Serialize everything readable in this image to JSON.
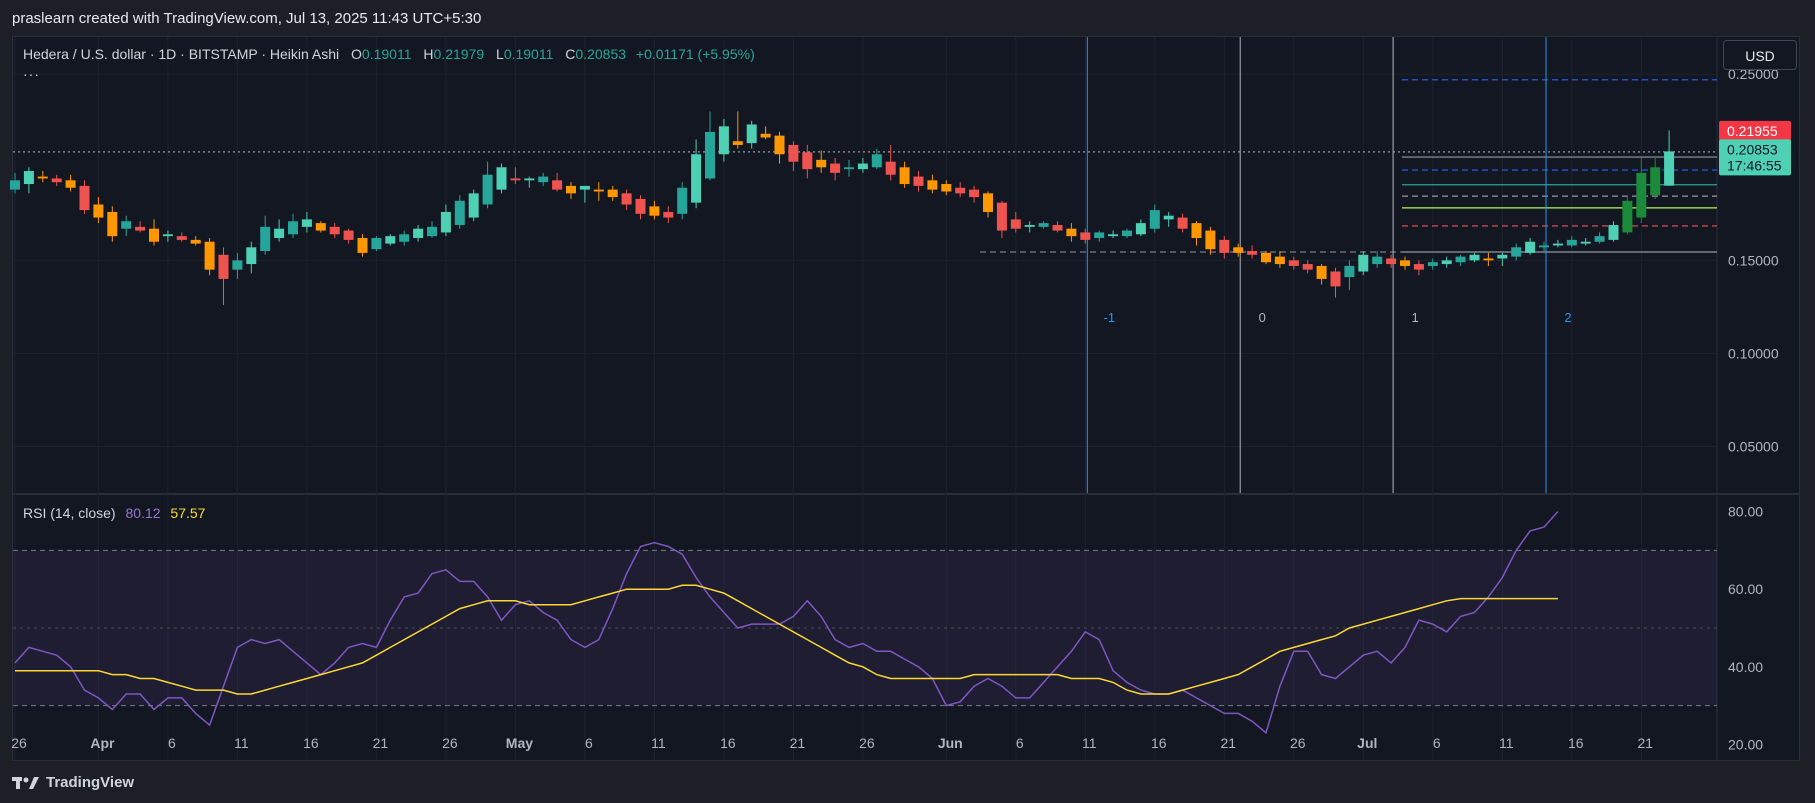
{
  "header": {
    "created_by": "praslearn created with TradingView.com, Jul 13, 2025 11:43 UTC+5:30"
  },
  "legend": {
    "symbol": "Hedera / U.S. dollar · 1D · BITSTAMP · Heikin Ashi",
    "o_label": "O",
    "o_value": "0.19011",
    "h_label": "H",
    "h_value": "0.21979",
    "l_label": "L",
    "l_value": "0.19011",
    "c_label": "C",
    "c_value": "0.20853",
    "change": "+0.01171 (+5.95%)",
    "more": "···"
  },
  "currency_button": "USD",
  "rsi_legend": {
    "name": "RSI (14, close)",
    "rsi_value": "80.12",
    "ma_value": "57.57"
  },
  "footer": {
    "brand": "TradingView"
  },
  "colors": {
    "up": "#26a69a",
    "up_heikin": "#4dd0b4",
    "down": "#ef5350",
    "down_orange": "#ff9800",
    "rsi_line": "#7e57c2",
    "rsi_ma": "#fdd835",
    "grid": "#1e222d"
  },
  "chart_data": {
    "type": "candlestick",
    "title": "Hedera / U.S. dollar · 1D · BITSTAMP · Heikin Ashi",
    "price_axis": {
      "ticks": [
        "0.25000",
        "0.15000",
        "0.10000",
        "0.05000"
      ],
      "ylim": [
        0.025,
        0.27
      ]
    },
    "price_tags": [
      {
        "label": "0.21955",
        "price": 0.21955,
        "color": "#f23645"
      },
      {
        "label": "0.20853",
        "label2": "17:46:55",
        "price": 0.20853,
        "color": "#4dd0b4"
      }
    ],
    "x_ticks": [
      "26",
      "Apr",
      "6",
      "11",
      "16",
      "21",
      "26",
      "May",
      "6",
      "11",
      "16",
      "21",
      "26",
      "Jun",
      "6",
      "11",
      "16",
      "21",
      "26",
      "Jul",
      "6",
      "11",
      "16",
      "21"
    ],
    "x_tick_index": [
      0,
      6,
      11,
      16,
      21,
      26,
      31,
      36,
      41,
      46,
      51,
      56,
      61,
      67,
      72,
      77,
      82,
      87,
      92,
      97,
      102,
      107,
      112,
      117
    ],
    "candles": [
      {
        "o": 0.188,
        "h": 0.197,
        "l": 0.186,
        "c": 0.193
      },
      {
        "o": 0.191,
        "h": 0.2,
        "l": 0.186,
        "c": 0.198
      },
      {
        "o": 0.195,
        "h": 0.198,
        "l": 0.192,
        "c": 0.194
      },
      {
        "o": 0.194,
        "h": 0.196,
        "l": 0.19,
        "c": 0.192
      },
      {
        "o": 0.193,
        "h": 0.196,
        "l": 0.187,
        "c": 0.189
      },
      {
        "o": 0.19,
        "h": 0.193,
        "l": 0.175,
        "c": 0.177
      },
      {
        "o": 0.18,
        "h": 0.184,
        "l": 0.17,
        "c": 0.173
      },
      {
        "o": 0.176,
        "h": 0.179,
        "l": 0.16,
        "c": 0.163
      },
      {
        "o": 0.167,
        "h": 0.174,
        "l": 0.163,
        "c": 0.171
      },
      {
        "o": 0.168,
        "h": 0.171,
        "l": 0.165,
        "c": 0.166
      },
      {
        "o": 0.167,
        "h": 0.172,
        "l": 0.158,
        "c": 0.16
      },
      {
        "o": 0.163,
        "h": 0.166,
        "l": 0.16,
        "c": 0.164
      },
      {
        "o": 0.163,
        "h": 0.165,
        "l": 0.16,
        "c": 0.161
      },
      {
        "o": 0.161,
        "h": 0.163,
        "l": 0.158,
        "c": 0.159
      },
      {
        "o": 0.16,
        "h": 0.162,
        "l": 0.142,
        "c": 0.145
      },
      {
        "o": 0.153,
        "h": 0.157,
        "l": 0.126,
        "c": 0.14
      },
      {
        "o": 0.145,
        "h": 0.154,
        "l": 0.14,
        "c": 0.15
      },
      {
        "o": 0.148,
        "h": 0.16,
        "l": 0.143,
        "c": 0.157
      },
      {
        "o": 0.155,
        "h": 0.174,
        "l": 0.153,
        "c": 0.168
      },
      {
        "o": 0.162,
        "h": 0.172,
        "l": 0.16,
        "c": 0.167
      },
      {
        "o": 0.164,
        "h": 0.175,
        "l": 0.162,
        "c": 0.171
      },
      {
        "o": 0.168,
        "h": 0.176,
        "l": 0.165,
        "c": 0.172
      },
      {
        "o": 0.17,
        "h": 0.171,
        "l": 0.165,
        "c": 0.166
      },
      {
        "o": 0.168,
        "h": 0.17,
        "l": 0.162,
        "c": 0.164
      },
      {
        "o": 0.166,
        "h": 0.167,
        "l": 0.159,
        "c": 0.161
      },
      {
        "o": 0.162,
        "h": 0.164,
        "l": 0.152,
        "c": 0.154
      },
      {
        "o": 0.156,
        "h": 0.163,
        "l": 0.155,
        "c": 0.162
      },
      {
        "o": 0.159,
        "h": 0.164,
        "l": 0.158,
        "c": 0.163
      },
      {
        "o": 0.16,
        "h": 0.166,
        "l": 0.158,
        "c": 0.164
      },
      {
        "o": 0.162,
        "h": 0.169,
        "l": 0.16,
        "c": 0.167
      },
      {
        "o": 0.163,
        "h": 0.171,
        "l": 0.162,
        "c": 0.168
      },
      {
        "o": 0.165,
        "h": 0.18,
        "l": 0.163,
        "c": 0.176
      },
      {
        "o": 0.169,
        "h": 0.185,
        "l": 0.167,
        "c": 0.182
      },
      {
        "o": 0.173,
        "h": 0.188,
        "l": 0.171,
        "c": 0.186
      },
      {
        "o": 0.18,
        "h": 0.203,
        "l": 0.178,
        "c": 0.196
      },
      {
        "o": 0.188,
        "h": 0.202,
        "l": 0.186,
        "c": 0.2
      },
      {
        "o": 0.194,
        "h": 0.2,
        "l": 0.191,
        "c": 0.193
      },
      {
        "o": 0.193,
        "h": 0.195,
        "l": 0.189,
        "c": 0.194
      },
      {
        "o": 0.192,
        "h": 0.197,
        "l": 0.19,
        "c": 0.195
      },
      {
        "o": 0.193,
        "h": 0.197,
        "l": 0.187,
        "c": 0.188
      },
      {
        "o": 0.19,
        "h": 0.192,
        "l": 0.183,
        "c": 0.186
      },
      {
        "o": 0.188,
        "h": 0.19,
        "l": 0.181,
        "c": 0.19
      },
      {
        "o": 0.188,
        "h": 0.192,
        "l": 0.182,
        "c": 0.187
      },
      {
        "o": 0.188,
        "h": 0.19,
        "l": 0.182,
        "c": 0.184
      },
      {
        "o": 0.186,
        "h": 0.188,
        "l": 0.177,
        "c": 0.18
      },
      {
        "o": 0.183,
        "h": 0.185,
        "l": 0.172,
        "c": 0.175
      },
      {
        "o": 0.179,
        "h": 0.182,
        "l": 0.172,
        "c": 0.174
      },
      {
        "o": 0.176,
        "h": 0.179,
        "l": 0.17,
        "c": 0.173
      },
      {
        "o": 0.175,
        "h": 0.192,
        "l": 0.172,
        "c": 0.189
      },
      {
        "o": 0.181,
        "h": 0.215,
        "l": 0.178,
        "c": 0.207
      },
      {
        "o": 0.194,
        "h": 0.23,
        "l": 0.193,
        "c": 0.219
      },
      {
        "o": 0.207,
        "h": 0.226,
        "l": 0.203,
        "c": 0.222
      },
      {
        "o": 0.214,
        "h": 0.23,
        "l": 0.21,
        "c": 0.212
      },
      {
        "o": 0.213,
        "h": 0.225,
        "l": 0.21,
        "c": 0.223
      },
      {
        "o": 0.218,
        "h": 0.222,
        "l": 0.215,
        "c": 0.216
      },
      {
        "o": 0.217,
        "h": 0.219,
        "l": 0.202,
        "c": 0.207
      },
      {
        "o": 0.212,
        "h": 0.214,
        "l": 0.198,
        "c": 0.203
      },
      {
        "o": 0.208,
        "h": 0.212,
        "l": 0.194,
        "c": 0.199
      },
      {
        "o": 0.204,
        "h": 0.209,
        "l": 0.197,
        "c": 0.2
      },
      {
        "o": 0.202,
        "h": 0.205,
        "l": 0.193,
        "c": 0.197
      },
      {
        "o": 0.199,
        "h": 0.204,
        "l": 0.195,
        "c": 0.2
      },
      {
        "o": 0.199,
        "h": 0.205,
        "l": 0.197,
        "c": 0.202
      },
      {
        "o": 0.2,
        "h": 0.21,
        "l": 0.199,
        "c": 0.207
      },
      {
        "o": 0.203,
        "h": 0.212,
        "l": 0.193,
        "c": 0.196
      },
      {
        "o": 0.2,
        "h": 0.203,
        "l": 0.189,
        "c": 0.191
      },
      {
        "o": 0.195,
        "h": 0.198,
        "l": 0.187,
        "c": 0.19
      },
      {
        "o": 0.193,
        "h": 0.196,
        "l": 0.186,
        "c": 0.188
      },
      {
        "o": 0.191,
        "h": 0.193,
        "l": 0.185,
        "c": 0.187
      },
      {
        "o": 0.189,
        "h": 0.192,
        "l": 0.184,
        "c": 0.186
      },
      {
        "o": 0.188,
        "h": 0.19,
        "l": 0.181,
        "c": 0.184
      },
      {
        "o": 0.186,
        "h": 0.187,
        "l": 0.173,
        "c": 0.176
      },
      {
        "o": 0.181,
        "h": 0.182,
        "l": 0.162,
        "c": 0.166
      },
      {
        "o": 0.172,
        "h": 0.176,
        "l": 0.165,
        "c": 0.167
      },
      {
        "o": 0.168,
        "h": 0.171,
        "l": 0.165,
        "c": 0.169
      },
      {
        "o": 0.168,
        "h": 0.171,
        "l": 0.167,
        "c": 0.17
      },
      {
        "o": 0.169,
        "h": 0.171,
        "l": 0.165,
        "c": 0.166
      },
      {
        "o": 0.167,
        "h": 0.17,
        "l": 0.16,
        "c": 0.163
      },
      {
        "o": 0.165,
        "h": 0.167,
        "l": 0.159,
        "c": 0.161
      },
      {
        "o": 0.162,
        "h": 0.166,
        "l": 0.16,
        "c": 0.165
      },
      {
        "o": 0.163,
        "h": 0.166,
        "l": 0.162,
        "c": 0.164
      },
      {
        "o": 0.163,
        "h": 0.167,
        "l": 0.162,
        "c": 0.166
      },
      {
        "o": 0.164,
        "h": 0.172,
        "l": 0.163,
        "c": 0.17
      },
      {
        "o": 0.167,
        "h": 0.18,
        "l": 0.165,
        "c": 0.177
      },
      {
        "o": 0.172,
        "h": 0.176,
        "l": 0.168,
        "c": 0.174
      },
      {
        "o": 0.173,
        "h": 0.175,
        "l": 0.165,
        "c": 0.167
      },
      {
        "o": 0.17,
        "h": 0.171,
        "l": 0.158,
        "c": 0.162
      },
      {
        "o": 0.166,
        "h": 0.168,
        "l": 0.153,
        "c": 0.156
      },
      {
        "o": 0.161,
        "h": 0.163,
        "l": 0.151,
        "c": 0.154
      },
      {
        "o": 0.157,
        "h": 0.159,
        "l": 0.152,
        "c": 0.154
      },
      {
        "o": 0.155,
        "h": 0.158,
        "l": 0.151,
        "c": 0.153
      },
      {
        "o": 0.154,
        "h": 0.155,
        "l": 0.148,
        "c": 0.149
      },
      {
        "o": 0.152,
        "h": 0.155,
        "l": 0.146,
        "c": 0.148
      },
      {
        "o": 0.15,
        "h": 0.152,
        "l": 0.145,
        "c": 0.147
      },
      {
        "o": 0.148,
        "h": 0.15,
        "l": 0.143,
        "c": 0.145
      },
      {
        "o": 0.147,
        "h": 0.148,
        "l": 0.137,
        "c": 0.14
      },
      {
        "o": 0.144,
        "h": 0.146,
        "l": 0.13,
        "c": 0.136
      },
      {
        "o": 0.141,
        "h": 0.15,
        "l": 0.134,
        "c": 0.147
      },
      {
        "o": 0.144,
        "h": 0.155,
        "l": 0.142,
        "c": 0.153
      },
      {
        "o": 0.148,
        "h": 0.155,
        "l": 0.146,
        "c": 0.152
      },
      {
        "o": 0.151,
        "h": 0.153,
        "l": 0.146,
        "c": 0.148
      },
      {
        "o": 0.15,
        "h": 0.152,
        "l": 0.145,
        "c": 0.147
      },
      {
        "o": 0.148,
        "h": 0.15,
        "l": 0.142,
        "c": 0.145
      },
      {
        "o": 0.147,
        "h": 0.151,
        "l": 0.145,
        "c": 0.149
      },
      {
        "o": 0.148,
        "h": 0.152,
        "l": 0.146,
        "c": 0.15
      },
      {
        "o": 0.149,
        "h": 0.153,
        "l": 0.147,
        "c": 0.152
      },
      {
        "o": 0.15,
        "h": 0.154,
        "l": 0.149,
        "c": 0.153
      },
      {
        "o": 0.151,
        "h": 0.154,
        "l": 0.147,
        "c": 0.15
      },
      {
        "o": 0.151,
        "h": 0.154,
        "l": 0.147,
        "c": 0.153
      },
      {
        "o": 0.152,
        "h": 0.159,
        "l": 0.15,
        "c": 0.157
      },
      {
        "o": 0.154,
        "h": 0.162,
        "l": 0.153,
        "c": 0.16
      },
      {
        "o": 0.157,
        "h": 0.16,
        "l": 0.155,
        "c": 0.158
      },
      {
        "o": 0.158,
        "h": 0.161,
        "l": 0.157,
        "c": 0.159
      },
      {
        "o": 0.158,
        "h": 0.163,
        "l": 0.157,
        "c": 0.161
      },
      {
        "o": 0.159,
        "h": 0.162,
        "l": 0.158,
        "c": 0.16
      },
      {
        "o": 0.16,
        "h": 0.165,
        "l": 0.159,
        "c": 0.163
      },
      {
        "o": 0.161,
        "h": 0.171,
        "l": 0.16,
        "c": 0.169
      },
      {
        "o": 0.165,
        "h": 0.185,
        "l": 0.164,
        "c": 0.182
      },
      {
        "o": 0.173,
        "h": 0.205,
        "l": 0.17,
        "c": 0.197
      },
      {
        "o": 0.185,
        "h": 0.206,
        "l": 0.183,
        "c": 0.2
      },
      {
        "o": 0.19011,
        "h": 0.21979,
        "l": 0.19011,
        "c": 0.20853
      }
    ],
    "horizontal_levels": [
      {
        "price": 0.247,
        "style": "dashed",
        "color": "#2962ff"
      },
      {
        "price": 0.2083,
        "style": "dotted",
        "color": "#9598a1"
      },
      {
        "price": 0.2055,
        "style": "solid",
        "color": "#9598a1"
      },
      {
        "price": 0.1985,
        "style": "dashed",
        "color": "#2962ff"
      },
      {
        "price": 0.1906,
        "style": "solid",
        "color": "#26a69a"
      },
      {
        "price": 0.1845,
        "style": "dashed",
        "color": "#9598a1"
      },
      {
        "price": 0.1782,
        "style": "solid",
        "color": "#b2f562"
      },
      {
        "price": 0.1685,
        "style": "dashed",
        "color": "#ef5350"
      },
      {
        "price": 0.1545,
        "style": "solid",
        "color": "#9598a1"
      },
      {
        "price": 0.1545,
        "style": "dashed",
        "color": "#787b86"
      }
    ],
    "cycle_lines": [
      {
        "label": "-1",
        "index": 77,
        "color": "#2196f3"
      },
      {
        "label": "0",
        "index": 88,
        "color": "#b2b5be"
      },
      {
        "label": "1",
        "index": 99,
        "color": "#b2b5be"
      },
      {
        "label": "2",
        "index": 110,
        "color": "#2196f3"
      }
    ],
    "rsi": {
      "name": "RSI (14, close)",
      "ticks": [
        "80.00",
        "60.00",
        "40.00",
        "20.00"
      ],
      "ylim": [
        16,
        84
      ],
      "band": [
        30,
        70
      ],
      "mid": 50,
      "rsi_values": [
        41,
        45,
        44,
        43,
        40,
        34,
        32,
        29,
        33,
        33,
        29,
        32,
        32,
        28,
        25,
        35,
        45,
        47,
        46,
        47,
        44,
        41,
        38,
        41,
        45,
        46,
        45,
        52,
        58,
        59,
        64,
        65,
        62,
        62,
        58,
        52,
        56,
        57,
        54,
        52,
        47,
        45,
        47,
        55,
        64,
        71,
        72,
        71,
        69,
        63,
        58,
        54,
        50,
        51,
        51,
        51,
        53,
        57,
        53,
        47,
        45,
        46,
        44,
        44,
        42,
        40,
        37,
        30,
        31,
        35,
        37,
        35,
        32,
        32,
        36,
        40,
        44,
        49,
        47,
        39,
        36,
        34,
        33,
        33,
        34,
        32,
        30,
        28,
        28,
        26,
        23,
        35,
        44,
        44,
        38,
        37,
        40,
        43,
        44,
        41,
        45,
        52,
        51,
        49,
        53,
        54,
        58,
        63,
        70,
        75,
        76,
        80
      ],
      "rsi_ma_values": [
        39,
        39,
        39,
        39,
        39,
        39,
        39,
        38,
        38,
        37,
        37,
        36,
        35,
        34,
        34,
        34,
        33,
        33,
        34,
        35,
        36,
        37,
        38,
        39,
        40,
        41,
        43,
        45,
        47,
        49,
        51,
        53,
        55,
        56,
        57,
        57,
        57,
        56,
        56,
        56,
        56,
        57,
        58,
        59,
        60,
        60,
        60,
        60,
        61,
        61,
        60,
        59,
        57,
        55,
        53,
        51,
        49,
        47,
        45,
        43,
        41,
        40,
        38,
        37,
        37,
        37,
        37,
        37,
        37,
        38,
        38,
        38,
        38,
        38,
        38,
        38,
        37,
        37,
        37,
        36,
        34,
        33,
        33,
        33,
        34,
        35,
        36,
        37,
        38,
        40,
        42,
        44,
        45,
        46,
        47,
        48,
        50,
        51,
        52,
        53,
        54,
        55,
        56,
        57,
        57.57,
        57.57,
        57.57,
        57.57,
        57.57,
        57.57,
        57.57,
        57.57
      ]
    }
  }
}
